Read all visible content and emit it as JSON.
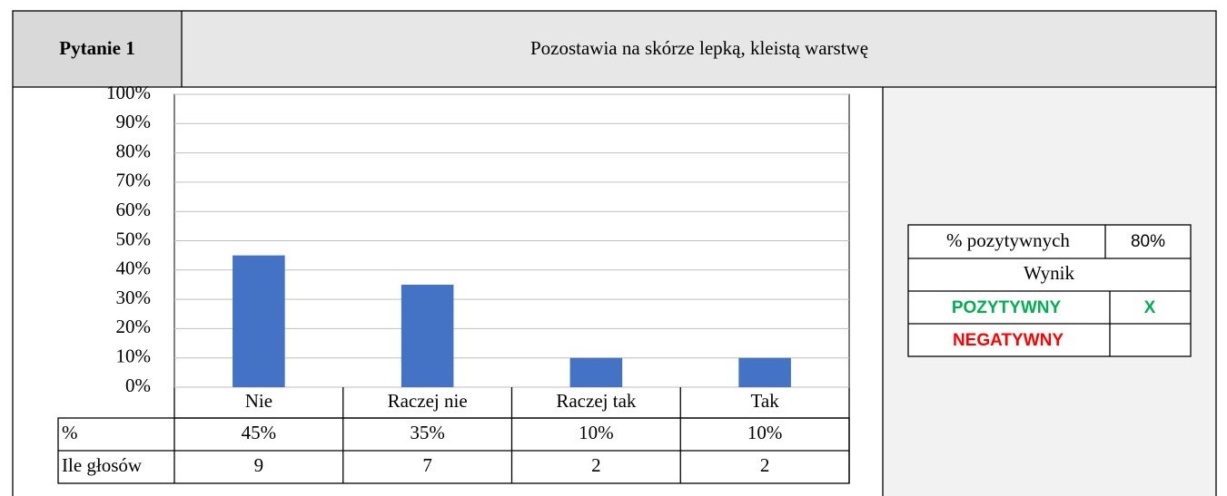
{
  "header": {
    "label": "Pytanie 1",
    "title": "Pozostawia na skórze lepką, kleistą warstwę"
  },
  "chart_data": {
    "type": "bar",
    "categories": [
      "Nie",
      "Raczej nie",
      "Raczej tak",
      "Tak"
    ],
    "values": [
      45,
      35,
      10,
      10
    ],
    "value_labels": [
      "45%",
      "35%",
      "10%",
      "10%"
    ],
    "color": "#4472c4",
    "ylim": [
      0,
      100
    ],
    "yticks": [
      {
        "value": 0,
        "label": "0%"
      },
      {
        "value": 10,
        "label": "10%"
      },
      {
        "value": 20,
        "label": "20%"
      },
      {
        "value": 30,
        "label": "30%"
      },
      {
        "value": 40,
        "label": "40%"
      },
      {
        "value": 50,
        "label": "50%"
      },
      {
        "value": 60,
        "label": "60%"
      },
      {
        "value": 70,
        "label": "70%"
      },
      {
        "value": 80,
        "label": "80%"
      },
      {
        "value": 90,
        "label": "90%"
      },
      {
        "value": 100,
        "label": "100%"
      }
    ],
    "grid": true
  },
  "table": {
    "percent_label": "%",
    "votes_label": "Ile głosów",
    "votes": [
      9,
      7,
      2,
      2
    ]
  },
  "summary": {
    "positive_label": "% pozytywnych",
    "positive_value": "80%",
    "result_label": "Wynik",
    "positive": "POZYTYWNY",
    "positive_mark": "X",
    "negative": "NEGATYWNY"
  }
}
